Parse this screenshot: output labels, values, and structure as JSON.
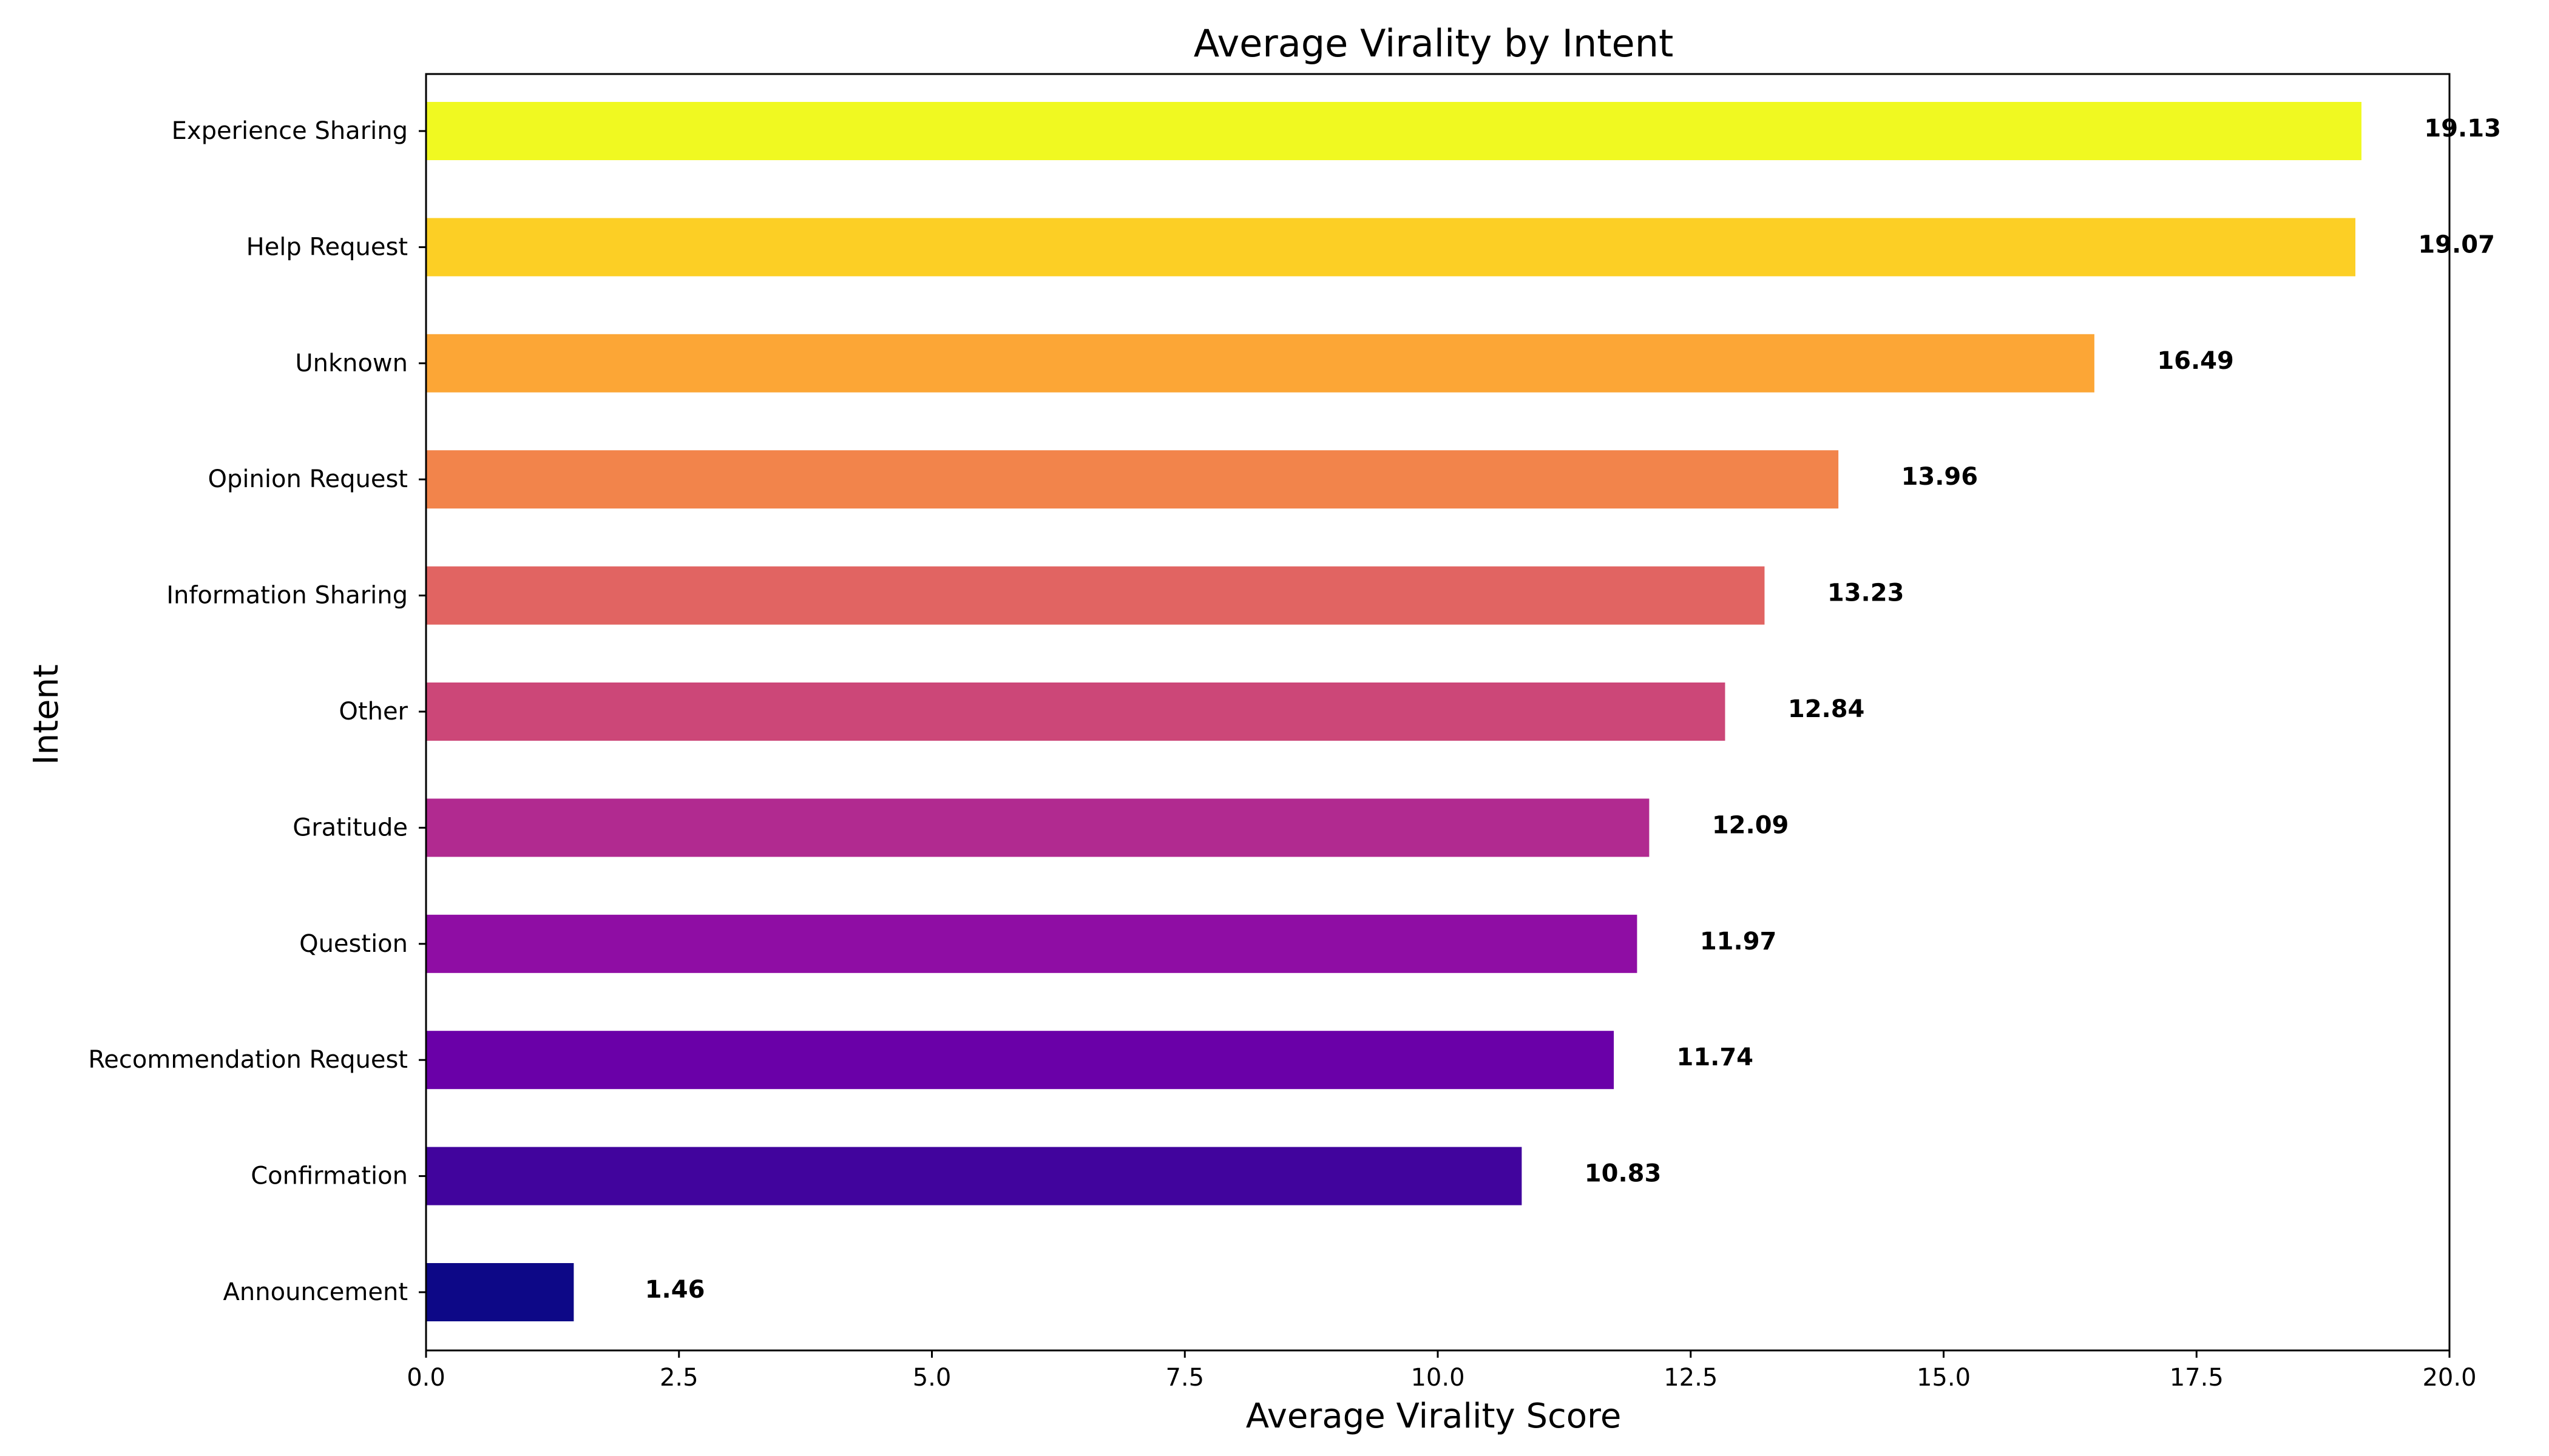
{
  "chart_data": {
    "type": "bar",
    "orientation": "horizontal",
    "title": "Average Virality by Intent",
    "xlabel": "Average Virality Score",
    "ylabel": "Intent",
    "xlim": [
      0,
      20
    ],
    "xticks": [
      "0.0",
      "2.5",
      "5.0",
      "7.5",
      "10.0",
      "12.5",
      "15.0",
      "17.5",
      "20.0"
    ],
    "xtick_values": [
      0,
      2.5,
      5,
      7.5,
      10,
      12.5,
      15,
      17.5,
      20
    ],
    "grid": false,
    "legend": "none",
    "categories": [
      "Experience Sharing",
      "Help Request",
      "Unknown",
      "Opinion Request",
      "Information Sharing",
      "Other",
      "Gratitude",
      "Question",
      "Recommendation Request",
      "Confirmation",
      "Announcement"
    ],
    "values": [
      19.13,
      19.07,
      16.49,
      13.96,
      13.23,
      12.84,
      12.09,
      11.97,
      11.74,
      10.83,
      1.46
    ],
    "value_labels": [
      "19.13",
      "19.07",
      "16.49",
      "13.96",
      "13.23",
      "12.84",
      "12.09",
      "11.97",
      "11.74",
      "10.83",
      "1.46"
    ],
    "colors": [
      "#f0f921",
      "#fccf25",
      "#fca636",
      "#f2844b",
      "#e16462",
      "#cc4778",
      "#b12a90",
      "#8f0da4",
      "#6a00a8",
      "#41049d",
      "#0d0887"
    ]
  }
}
